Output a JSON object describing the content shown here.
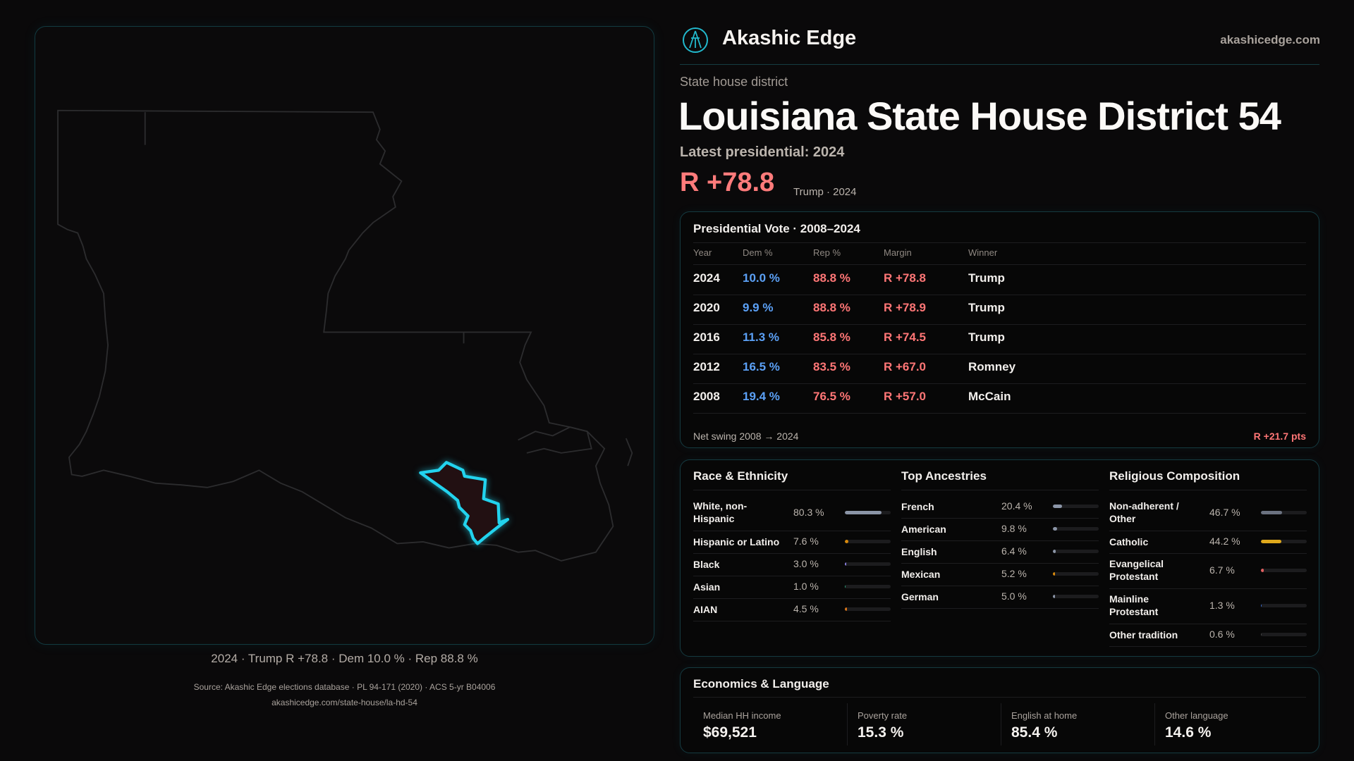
{
  "brand": {
    "name": "Akashic Edge",
    "site": "akashicedge.com"
  },
  "header": {
    "kicker": "State house district",
    "title": "Louisiana State House District 54",
    "latest": "Latest presidential: 2024",
    "margin": "R +78.8",
    "margin_sub": "Trump · 2024"
  },
  "map": {
    "caption": "2024 · Trump R +78.8 · Dem 10.0 % · Rep 88.8 %",
    "highlight_color": "#22d3ee"
  },
  "vote": {
    "title": "Presidential Vote · 2008–2024",
    "columns": [
      "Year",
      "Dem %",
      "Rep %",
      "Margin",
      "Winner"
    ],
    "rows": [
      {
        "year": "2024",
        "dem": "10.0 %",
        "rep": "88.8 %",
        "margin": "R +78.8",
        "winner": "Trump"
      },
      {
        "year": "2020",
        "dem": "9.9 %",
        "rep": "88.8 %",
        "margin": "R +78.9",
        "winner": "Trump"
      },
      {
        "year": "2016",
        "dem": "11.3 %",
        "rep": "85.8 %",
        "margin": "R +74.5",
        "winner": "Trump"
      },
      {
        "year": "2012",
        "dem": "16.5 %",
        "rep": "83.5 %",
        "margin": "R +67.0",
        "winner": "Romney"
      },
      {
        "year": "2008",
        "dem": "19.4 %",
        "rep": "76.5 %",
        "margin": "R +57.0",
        "winner": "McCain"
      }
    ],
    "swing_label": "Net swing 2008 → 2024",
    "swing_value": "R +21.7 pts"
  },
  "demographics": [
    {
      "title": "Race & Ethnicity",
      "items": [
        {
          "label": "White, non-Hispanic",
          "value": "80.3 %",
          "pct": 80.3,
          "color": "#8b95a7"
        },
        {
          "label": "Hispanic or Latino",
          "value": "7.6 %",
          "pct": 7.6,
          "color": "#d98a0c"
        },
        {
          "label": "Black",
          "value": "3.0 %",
          "pct": 3.0,
          "color": "#8a7fe0"
        },
        {
          "label": "Asian",
          "value": "1.0 %",
          "pct": 1.0,
          "color": "#2aa37a"
        },
        {
          "label": "AIAN",
          "value": "4.5 %",
          "pct": 4.5,
          "color": "#d9761a"
        }
      ]
    },
    {
      "title": "Top Ancestries",
      "items": [
        {
          "label": "French",
          "value": "20.4 %",
          "pct": 20.4,
          "color": "#8b95a7"
        },
        {
          "label": "American",
          "value": "9.8 %",
          "pct": 9.8,
          "color": "#8b95a7"
        },
        {
          "label": "English",
          "value": "6.4 %",
          "pct": 6.4,
          "color": "#8b95a7"
        },
        {
          "label": "Mexican",
          "value": "5.2 %",
          "pct": 5.2,
          "color": "#d98a0c"
        },
        {
          "label": "German",
          "value": "5.0 %",
          "pct": 5.0,
          "color": "#8b95a7"
        }
      ]
    },
    {
      "title": "Religious Composition",
      "items": [
        {
          "label": "Non-adherent / Other",
          "value": "46.7 %",
          "pct": 46.7,
          "color": "#6b7280"
        },
        {
          "label": "Catholic",
          "value": "44.2 %",
          "pct": 44.2,
          "color": "#e0a91c"
        },
        {
          "label": "Evangelical Protestant",
          "value": "6.7 %",
          "pct": 6.7,
          "color": "#e26060"
        },
        {
          "label": "Mainline Protestant",
          "value": "1.3 %",
          "pct": 1.3,
          "color": "#3b6fd6"
        },
        {
          "label": "Other tradition",
          "value": "0.6 %",
          "pct": 0.6,
          "color": "#444"
        }
      ]
    }
  ],
  "economics": {
    "title": "Economics & Language",
    "stats": [
      {
        "label": "Median HH income",
        "value": "$69,521"
      },
      {
        "label": "Poverty rate",
        "value": "15.3 %"
      },
      {
        "label": "English at home",
        "value": "85.4 %"
      },
      {
        "label": "Other language",
        "value": "14.6 %"
      }
    ]
  },
  "footer": {
    "source": "Source: Akashic Edge elections database · PL 94-171 (2020) · ACS 5-yr B04006",
    "url": "akashicedge.com/state-house/la-hd-54"
  }
}
